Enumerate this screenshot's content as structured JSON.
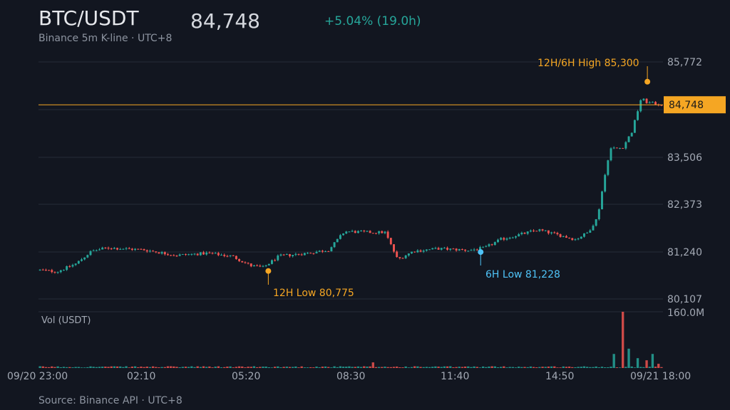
{
  "header": {
    "symbol": "BTC/USDT",
    "last_price": "84,748",
    "change": "+5.04% (19.0h)",
    "subtitle": "Binance 5m K-line · UTC+8"
  },
  "footer": {
    "source": "Source: Binance API · UTC+8"
  },
  "colors": {
    "up": "#26a69a",
    "down": "#ef5350",
    "accent": "#f5a623",
    "low6h": "#4fc3f7",
    "grid": "#262c38",
    "text": "#9aa1ad"
  },
  "chart_data": {
    "type": "candlestick",
    "x_range": [
      "09/20 23:00",
      "09/21 18:00"
    ],
    "x_ticks": [
      "09/20 23:00",
      "02:10",
      "05:20",
      "08:30",
      "11:40",
      "14:50",
      "09/21 18:00"
    ],
    "y_range": [
      80107,
      85772
    ],
    "y_ticks": [
      "85,772",
      "83,506",
      "82,373",
      "81,240",
      "80,107"
    ],
    "last_price_label": "84,748",
    "last_price": 84748,
    "anchors": [
      {
        "t": 0,
        "p": 80800
      },
      {
        "t": 0.03,
        "p": 80760
      },
      {
        "t": 0.06,
        "p": 80950
      },
      {
        "t": 0.085,
        "p": 81250
      },
      {
        "t": 0.11,
        "p": 81330
      },
      {
        "t": 0.17,
        "p": 81280
      },
      {
        "t": 0.22,
        "p": 81150
      },
      {
        "t": 0.27,
        "p": 81200
      },
      {
        "t": 0.31,
        "p": 81130
      },
      {
        "t": 0.34,
        "p": 80900
      },
      {
        "t": 0.36,
        "p": 80860
      },
      {
        "t": 0.385,
        "p": 81130
      },
      {
        "t": 0.43,
        "p": 81200
      },
      {
        "t": 0.465,
        "p": 81280
      },
      {
        "t": 0.49,
        "p": 81720
      },
      {
        "t": 0.53,
        "p": 81700
      },
      {
        "t": 0.555,
        "p": 81700
      },
      {
        "t": 0.575,
        "p": 81050
      },
      {
        "t": 0.6,
        "p": 81250
      },
      {
        "t": 0.64,
        "p": 81310
      },
      {
        "t": 0.69,
        "p": 81270
      },
      {
        "t": 0.715,
        "p": 81330
      },
      {
        "t": 0.74,
        "p": 81530
      },
      {
        "t": 0.8,
        "p": 81760
      },
      {
        "t": 0.86,
        "p": 81530
      },
      {
        "t": 0.88,
        "p": 81700
      },
      {
        "t": 0.895,
        "p": 82050
      },
      {
        "t": 0.905,
        "p": 82900
      },
      {
        "t": 0.915,
        "p": 83700
      },
      {
        "t": 0.935,
        "p": 83720
      },
      {
        "t": 0.95,
        "p": 84100
      },
      {
        "t": 0.965,
        "p": 84900
      },
      {
        "t": 0.975,
        "p": 84800
      },
      {
        "t": 1.0,
        "p": 84748
      }
    ],
    "annotations": [
      {
        "label": "12H/6H High 85,300",
        "time": "09/21 16:45",
        "price": 85300,
        "color": "#f5a623"
      },
      {
        "label": "12H Low 80,775",
        "time": "09/21 06:00",
        "price": 80775,
        "color": "#f5a623"
      },
      {
        "label": "6H Low 81,228",
        "time": "09/21 12:20",
        "price": 81228,
        "color": "#4fc3f7"
      }
    ],
    "volume": {
      "label": "Vol (USDT)",
      "max_label": "160.0M",
      "max": 160000000,
      "spikes": [
        {
          "t": 0.535,
          "v": 16000000
        },
        {
          "t": 0.92,
          "v": 40000000
        },
        {
          "t": 0.935,
          "v": 160000000
        },
        {
          "t": 0.945,
          "v": 55000000
        },
        {
          "t": 0.96,
          "v": 28000000
        },
        {
          "t": 0.975,
          "v": 22000000
        },
        {
          "t": 0.985,
          "v": 40000000
        },
        {
          "t": 0.995,
          "v": 12000000
        }
      ]
    }
  }
}
